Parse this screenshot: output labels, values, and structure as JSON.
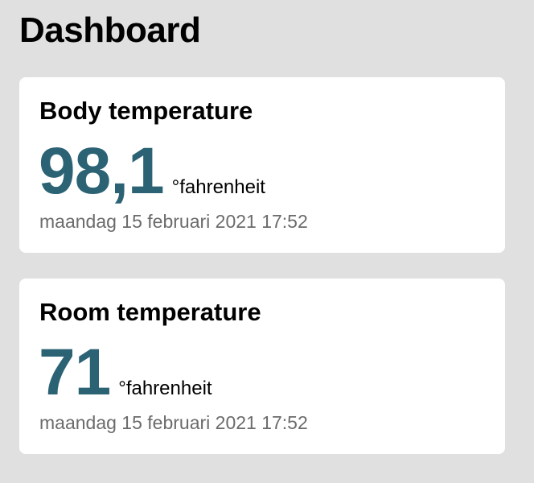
{
  "page": {
    "title": "Dashboard"
  },
  "cards": [
    {
      "title": "Body temperature",
      "value": "98,1",
      "unit": "°fahrenheit",
      "timestamp": "maandag 15 februari 2021 17:52"
    },
    {
      "title": "Room temperature",
      "value": "71",
      "unit": "°fahrenheit",
      "timestamp": "maandag 15 februari 2021 17:52"
    }
  ],
  "colors": {
    "background": "#e0e0e0",
    "card": "#ffffff",
    "value": "#2b6375",
    "timestamp": "#6b6b6b"
  }
}
